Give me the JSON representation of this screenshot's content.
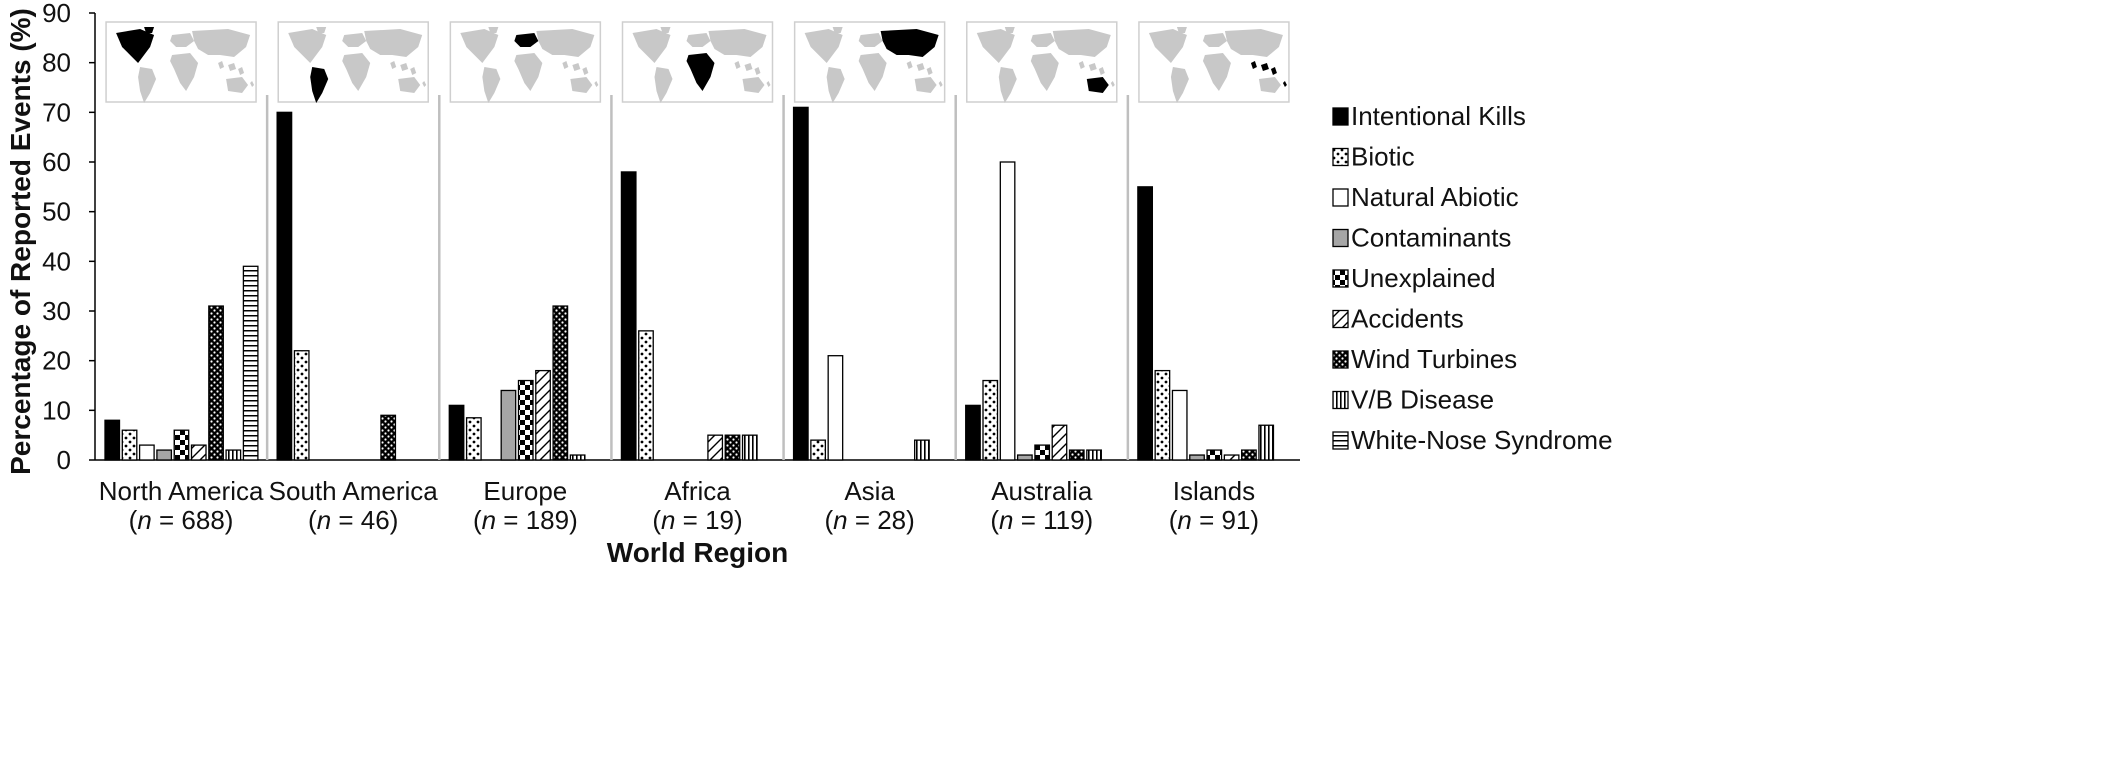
{
  "chart_data": {
    "type": "bar",
    "ylabel": "Percentage of Reported Events (%)",
    "xlabel": "World Region",
    "ylim": [
      0,
      90
    ],
    "yticks": [
      0,
      10,
      20,
      30,
      40,
      50,
      60,
      70,
      80,
      90
    ],
    "grid": false,
    "legend_position": "right",
    "categories": [
      {
        "name": "North America",
        "n_prefix": "(",
        "n_var": "n",
        "n_rest": " = 688)",
        "map_icon": "world-map-north-america-highlighted"
      },
      {
        "name": "South America",
        "n_prefix": "(",
        "n_var": "n",
        "n_rest": " = 46)",
        "map_icon": "world-map-south-america-highlighted"
      },
      {
        "name": "Europe",
        "n_prefix": "(",
        "n_var": "n",
        "n_rest": " = 189)",
        "map_icon": "world-map-europe-highlighted"
      },
      {
        "name": "Africa",
        "n_prefix": "(",
        "n_var": "n",
        "n_rest": " = 19)",
        "map_icon": "world-map-africa-highlighted"
      },
      {
        "name": "Asia",
        "n_prefix": "(",
        "n_var": "n",
        "n_rest": " = 28)",
        "map_icon": "world-map-asia-highlighted"
      },
      {
        "name": "Australia",
        "n_prefix": "(",
        "n_var": "n",
        "n_rest": " = 119)",
        "map_icon": "world-map-australia-highlighted"
      },
      {
        "name": "Islands",
        "n_prefix": "(",
        "n_var": "n",
        "n_rest": " = 91)",
        "map_icon": "world-map-islands-highlighted"
      }
    ],
    "series": [
      {
        "name": "Intentional Kills",
        "pattern": "solid-black",
        "values": [
          8,
          70,
          11,
          58,
          71,
          11,
          55
        ]
      },
      {
        "name": "Biotic",
        "pattern": "dots",
        "values": [
          6,
          22,
          8.5,
          26,
          4,
          16,
          18
        ]
      },
      {
        "name": "Natural Abiotic",
        "pattern": "white",
        "values": [
          3,
          0,
          0,
          0,
          21,
          60,
          14
        ]
      },
      {
        "name": "Contaminants",
        "pattern": "solid-gray",
        "values": [
          2,
          0,
          14,
          0,
          0,
          1,
          1
        ]
      },
      {
        "name": "Unexplained",
        "pattern": "checker",
        "values": [
          6,
          0,
          16,
          0,
          0,
          3,
          2
        ]
      },
      {
        "name": "Accidents",
        "pattern": "diagonal",
        "values": [
          3,
          0,
          18,
          5,
          0,
          7,
          1
        ]
      },
      {
        "name": "Wind Turbines",
        "pattern": "dense-dots",
        "values": [
          31,
          9,
          31,
          5,
          0,
          2,
          2
        ]
      },
      {
        "name": "V/B Disease",
        "pattern": "vertical-lines",
        "values": [
          2,
          0,
          1,
          5,
          4,
          2,
          7
        ]
      },
      {
        "name": "White-Nose Syndrome",
        "pattern": "horizontal-lines",
        "values": [
          39,
          0,
          0,
          0,
          0,
          0,
          0
        ]
      }
    ],
    "colors": {
      "bar_stroke": "#000000",
      "gray_fill": "#a6a6a6",
      "map_land": "#c8c8c8",
      "map_highlight": "#000000",
      "separator": "#bfbfbf"
    }
  }
}
